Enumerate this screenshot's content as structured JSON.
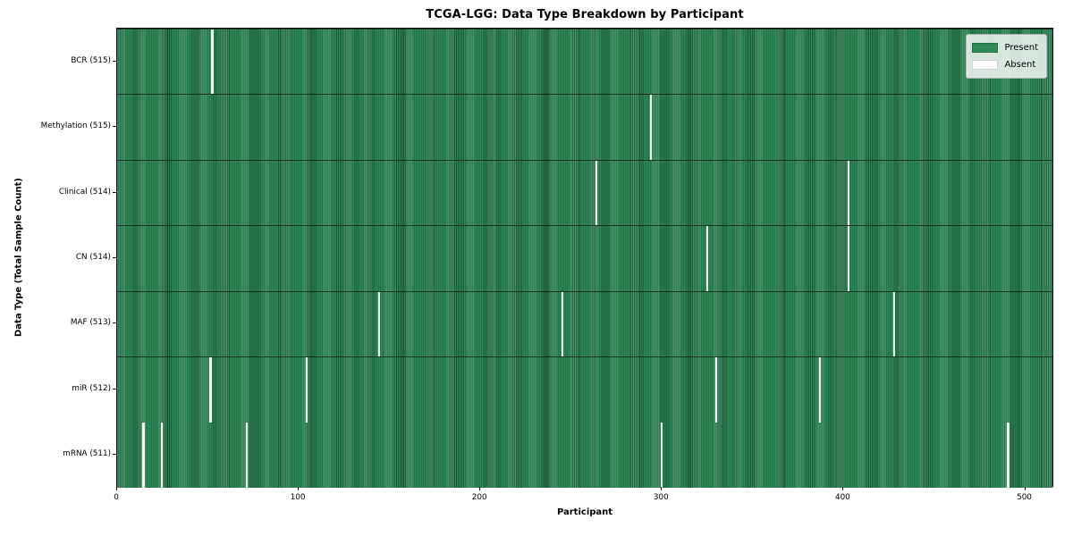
{
  "title": "TCGA-LGG: Data Type Breakdown by Participant",
  "chart_data": {
    "type": "heatmap",
    "title": "TCGA-LGG: Data Type Breakdown by Participant",
    "xlabel": "Participant",
    "ylabel": "Data Type (Total Sample Count)",
    "n_participants": 516,
    "xlim": [
      0,
      516
    ],
    "x_ticks": [
      0,
      100,
      200,
      300,
      400,
      500
    ],
    "grid": false,
    "legend_position": "upper right",
    "legend": [
      {
        "label": "Present",
        "color": "#2e8b57"
      },
      {
        "label": "Absent",
        "color": "#ffffff"
      }
    ],
    "colors": {
      "present": "#2e8b57",
      "present_edge": "#1b5637",
      "absent": "#ffffff",
      "row_divider": "#0a1c10"
    },
    "rows": [
      {
        "label": "BCR (515)",
        "data_type": "BCR",
        "present_count": 515,
        "absent_participants": [
          52
        ]
      },
      {
        "label": "Methylation (515)",
        "data_type": "Methylation",
        "present_count": 515,
        "absent_participants": [
          294
        ]
      },
      {
        "label": "Clinical (514)",
        "data_type": "Clinical",
        "present_count": 514,
        "absent_participants": [
          264,
          403
        ]
      },
      {
        "label": "CN (514)",
        "data_type": "CN",
        "present_count": 514,
        "absent_participants": [
          325,
          403
        ]
      },
      {
        "label": "MAF (513)",
        "data_type": "MAF",
        "present_count": 513,
        "absent_participants": [
          144,
          245,
          428
        ]
      },
      {
        "label": "miR (512)",
        "data_type": "miR",
        "present_count": 512,
        "absent_participants": [
          51,
          104,
          330,
          387
        ]
      },
      {
        "label": "mRNA (511)",
        "data_type": "mRNA",
        "present_count": 511,
        "absent_participants": [
          14,
          24,
          71,
          300,
          491
        ]
      }
    ]
  }
}
